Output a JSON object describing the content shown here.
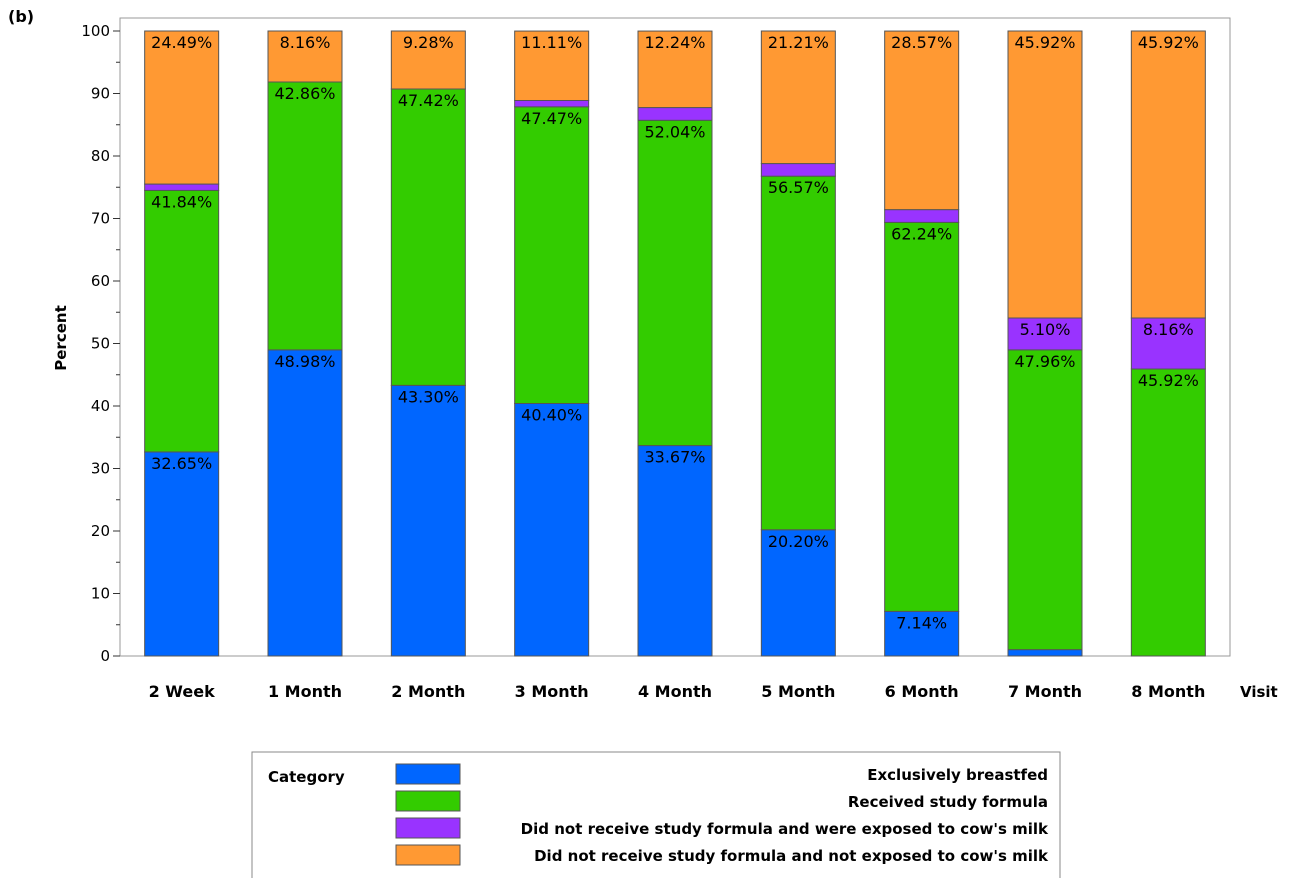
{
  "panel_label": "(b)",
  "chart_data": {
    "type": "bar",
    "stacked": true,
    "xlabel": "Visit",
    "ylabel": "Percent",
    "ylim": [
      0,
      100
    ],
    "yticks": [
      0,
      10,
      20,
      30,
      40,
      50,
      60,
      70,
      80,
      90,
      100
    ],
    "categories": [
      "2 Week",
      "1 Month",
      "2 Month",
      "3 Month",
      "4 Month",
      "5 Month",
      "6 Month",
      "7 Month",
      "8 Month"
    ],
    "legend_title": "Category",
    "legend_position": "bottom",
    "series": [
      {
        "name": "Exclusively breastfed",
        "color": "#0066ff",
        "values": [
          32.65,
          48.98,
          43.3,
          40.4,
          33.67,
          20.2,
          7.14,
          1.02,
          0
        ],
        "labels": [
          "32.65%",
          "48.98%",
          "43.30%",
          "40.40%",
          "33.67%",
          "20.20%",
          "7.14%",
          "",
          ""
        ]
      },
      {
        "name": "Received study formula",
        "color": "#33cc00",
        "values": [
          41.84,
          42.86,
          47.42,
          47.47,
          52.04,
          56.57,
          62.24,
          47.96,
          45.92
        ],
        "labels": [
          "41.84%",
          "42.86%",
          "47.42%",
          "47.47%",
          "52.04%",
          "56.57%",
          "62.24%",
          "47.96%",
          "45.92%"
        ]
      },
      {
        "name": "Did not receive study formula and were exposed to cow's milk",
        "color": "#9933ff",
        "values": [
          1.02,
          0,
          0,
          1.01,
          2.04,
          2.02,
          2.04,
          5.1,
          8.16
        ],
        "labels": [
          "",
          "",
          "",
          "",
          "",
          "",
          "",
          "5.10%",
          "8.16%"
        ]
      },
      {
        "name": "Did not receive study formula and not exposed to cow's milk",
        "color": "#ff9933",
        "values": [
          24.49,
          8.16,
          9.28,
          11.11,
          12.24,
          21.21,
          28.57,
          45.92,
          45.92
        ],
        "labels": [
          "24.49%",
          "8.16%",
          "9.28%",
          "11.11%",
          "12.24%",
          "21.21%",
          "28.57%",
          "45.92%",
          "45.92%"
        ]
      }
    ]
  }
}
